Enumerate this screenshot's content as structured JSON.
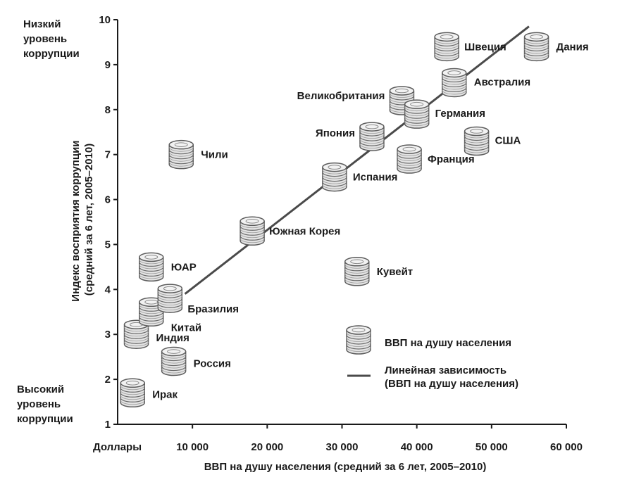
{
  "chart_data": {
    "type": "scatter",
    "xlabel": "ВВП на душу населения (средний за 6 лет, 2005–2010)",
    "ylabel": "Индекс восприятия коррупции (средний за 6 лет, 2005–2010)",
    "x_unit_label": "Доллары",
    "xlim": [
      0,
      60000
    ],
    "ylim": [
      1,
      10
    ],
    "x_ticks": [
      "10 000",
      "20 000",
      "30 000",
      "40 000",
      "50 000",
      "60 000"
    ],
    "y_ticks": [
      "1",
      "2",
      "3",
      "4",
      "5",
      "6",
      "7",
      "8",
      "9",
      "10"
    ],
    "low_corruption_label": "Низкий уровень коррупции",
    "high_corruption_label": "Высокий уровень коррупции",
    "points": [
      {
        "name": "Ирак",
        "x": 2000,
        "y": 1.7
      },
      {
        "name": "Индия",
        "x": 2500,
        "y": 3.0
      },
      {
        "name": "Китай",
        "x": 4500,
        "y": 3.5
      },
      {
        "name": "Бразилия",
        "x": 7000,
        "y": 3.8
      },
      {
        "name": "ЮАР",
        "x": 4500,
        "y": 4.5
      },
      {
        "name": "Россия",
        "x": 7500,
        "y": 2.4
      },
      {
        "name": "Чили",
        "x": 8500,
        "y": 7.0
      },
      {
        "name": "Южная Корея",
        "x": 18000,
        "y": 5.3
      },
      {
        "name": "Испания",
        "x": 29000,
        "y": 6.5
      },
      {
        "name": "Кувейт",
        "x": 32000,
        "y": 4.4
      },
      {
        "name": "Япония",
        "x": 34000,
        "y": 7.4
      },
      {
        "name": "Великобритания",
        "x": 38000,
        "y": 8.2
      },
      {
        "name": "Германия",
        "x": 40000,
        "y": 7.9
      },
      {
        "name": "Франция",
        "x": 39000,
        "y": 6.9
      },
      {
        "name": "Швеция",
        "x": 44000,
        "y": 9.4
      },
      {
        "name": "Австралия",
        "x": 45000,
        "y": 8.6
      },
      {
        "name": "США",
        "x": 48000,
        "y": 7.3
      },
      {
        "name": "Дания",
        "x": 56000,
        "y": 9.4
      }
    ],
    "trendline": {
      "x": [
        9000,
        55000
      ],
      "y": [
        3.9,
        9.85
      ]
    },
    "legend": [
      {
        "kind": "marker",
        "label": "ВВП на душу населения"
      },
      {
        "kind": "line",
        "label": "Линейная зависимость (ВВП на душу населения)"
      }
    ],
    "colors": {
      "marker_fill": "#e3e3e3",
      "marker_stroke": "#5c5c5c",
      "trendline": "#4a4a4a",
      "axis": "#1a1a1a"
    }
  }
}
